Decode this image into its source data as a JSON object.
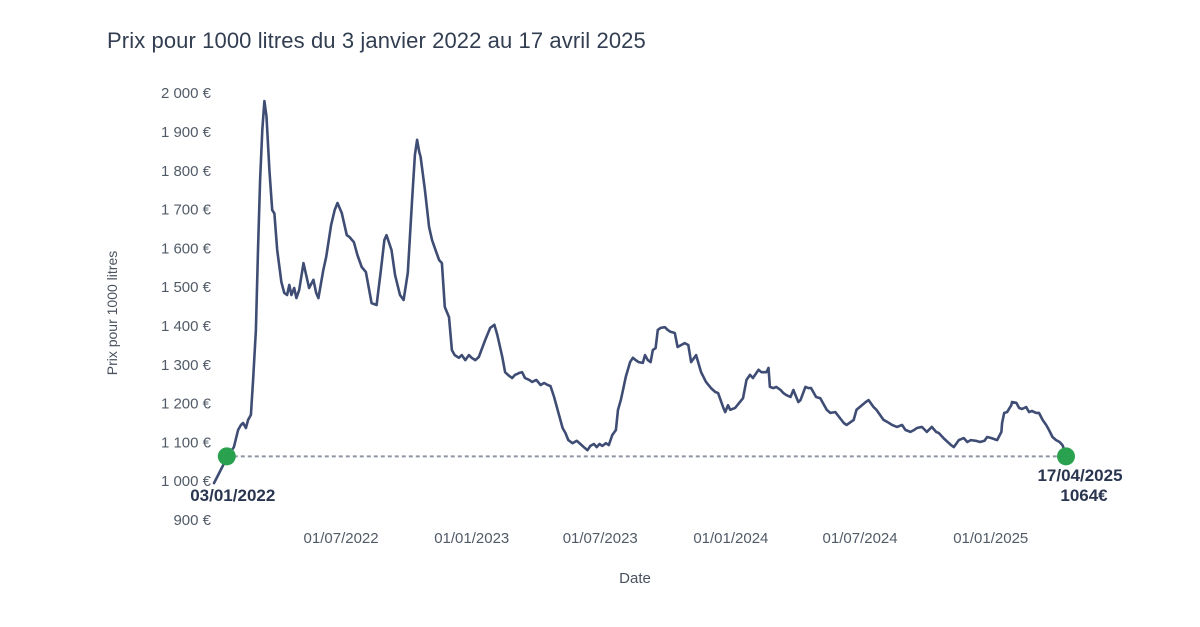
{
  "chart_data": {
    "type": "line",
    "title": "Prix pour 1000 litres du 3 janvier 2022 au 17 avril 2025",
    "xlabel": "Date",
    "ylabel": "Prix pour 1000 litres",
    "x_unit": "days_since_03/01/2022",
    "ylim": [
      900,
      2000
    ],
    "grid": false,
    "legend": "none",
    "y_ticks": [
      {
        "value": 900,
        "label": "900 €"
      },
      {
        "value": 1000,
        "label": "1 000 €"
      },
      {
        "value": 1100,
        "label": "1 100 €"
      },
      {
        "value": 1200,
        "label": "1 200 €"
      },
      {
        "value": 1300,
        "label": "1 300 €"
      },
      {
        "value": 1400,
        "label": "1 400 €"
      },
      {
        "value": 1500,
        "label": "1 500 €"
      },
      {
        "value": 1600,
        "label": "1 600 €"
      },
      {
        "value": 1700,
        "label": "1 700 €"
      },
      {
        "value": 1800,
        "label": "1 800 €"
      },
      {
        "value": 1900,
        "label": "1 900 €"
      },
      {
        "value": 2000,
        "label": "2 000 €"
      }
    ],
    "x_ticks": [
      {
        "day": 179,
        "label": "01/07/2022"
      },
      {
        "day": 363,
        "label": "01/01/2023"
      },
      {
        "day": 544,
        "label": "01/07/2023"
      },
      {
        "day": 728,
        "label": "01/01/2024"
      },
      {
        "day": 910,
        "label": "01/07/2024"
      },
      {
        "day": 1094,
        "label": "01/01/2025"
      }
    ],
    "colors": {
      "line": "#3f4d74",
      "marker": "#2aa14e",
      "dashed_reference": "#8e96a5",
      "title_text": "#323e51",
      "tick_text": "#515b67",
      "axis_title_text": "#49525e",
      "annotation_text": "#2a3650"
    },
    "reference_line": {
      "value": 1064,
      "from_day": 18,
      "to_day": 1200,
      "style": "dashed"
    },
    "markers": [
      {
        "day": 18,
        "value": 1064,
        "label": "03/01/2022",
        "sublabel": ""
      },
      {
        "day": 1200,
        "value": 1064,
        "label": "17/04/2025",
        "sublabel": "1064€"
      }
    ],
    "series": [
      {
        "name": "Prix pour 1000 litres",
        "points": [
          [
            0,
            995
          ],
          [
            7,
            1020
          ],
          [
            14,
            1045
          ],
          [
            21,
            1068
          ],
          [
            28,
            1088
          ],
          [
            34,
            1132
          ],
          [
            38,
            1145
          ],
          [
            41,
            1150
          ],
          [
            45,
            1137
          ],
          [
            48,
            1158
          ],
          [
            52,
            1171
          ],
          [
            55,
            1261
          ],
          [
            59,
            1390
          ],
          [
            62,
            1596
          ],
          [
            65,
            1776
          ],
          [
            68,
            1905
          ],
          [
            71,
            1980
          ],
          [
            74,
            1940
          ],
          [
            78,
            1802
          ],
          [
            82,
            1699
          ],
          [
            85,
            1690
          ],
          [
            89,
            1596
          ],
          [
            95,
            1513
          ],
          [
            99,
            1485
          ],
          [
            103,
            1480
          ],
          [
            106,
            1506
          ],
          [
            109,
            1480
          ],
          [
            113,
            1498
          ],
          [
            116,
            1472
          ],
          [
            120,
            1493
          ],
          [
            126,
            1562
          ],
          [
            130,
            1530
          ],
          [
            134,
            1498
          ],
          [
            140,
            1519
          ],
          [
            144,
            1485
          ],
          [
            147,
            1472
          ],
          [
            154,
            1544
          ],
          [
            158,
            1578
          ],
          [
            165,
            1660
          ],
          [
            170,
            1699
          ],
          [
            174,
            1717
          ],
          [
            180,
            1691
          ],
          [
            187,
            1634
          ],
          [
            191,
            1629
          ],
          [
            197,
            1616
          ],
          [
            202,
            1583
          ],
          [
            208,
            1552
          ],
          [
            214,
            1539
          ],
          [
            222,
            1459
          ],
          [
            229,
            1454
          ],
          [
            235,
            1544
          ],
          [
            240,
            1622
          ],
          [
            243,
            1634
          ],
          [
            250,
            1596
          ],
          [
            255,
            1531
          ],
          [
            262,
            1480
          ],
          [
            267,
            1467
          ],
          [
            273,
            1537
          ],
          [
            279,
            1725
          ],
          [
            283,
            1841
          ],
          [
            286,
            1880
          ],
          [
            289,
            1849
          ],
          [
            291,
            1836
          ],
          [
            297,
            1751
          ],
          [
            303,
            1655
          ],
          [
            307,
            1622
          ],
          [
            313,
            1591
          ],
          [
            317,
            1570
          ],
          [
            321,
            1562
          ],
          [
            325,
            1449
          ],
          [
            331,
            1423
          ],
          [
            335,
            1338
          ],
          [
            339,
            1325
          ],
          [
            345,
            1318
          ],
          [
            349,
            1325
          ],
          [
            354,
            1312
          ],
          [
            359,
            1325
          ],
          [
            363,
            1318
          ],
          [
            368,
            1312
          ],
          [
            373,
            1320
          ],
          [
            382,
            1364
          ],
          [
            389,
            1395
          ],
          [
            395,
            1403
          ],
          [
            399,
            1377
          ],
          [
            406,
            1320
          ],
          [
            410,
            1281
          ],
          [
            416,
            1271
          ],
          [
            420,
            1266
          ],
          [
            424,
            1274
          ],
          [
            430,
            1279
          ],
          [
            434,
            1281
          ],
          [
            438,
            1266
          ],
          [
            444,
            1261
          ],
          [
            448,
            1256
          ],
          [
            454,
            1261
          ],
          [
            460,
            1248
          ],
          [
            465,
            1253
          ],
          [
            470,
            1248
          ],
          [
            474,
            1245
          ],
          [
            479,
            1217
          ],
          [
            484,
            1184
          ],
          [
            491,
            1137
          ],
          [
            495,
            1124
          ],
          [
            499,
            1106
          ],
          [
            505,
            1098
          ],
          [
            511,
            1104
          ],
          [
            516,
            1096
          ],
          [
            522,
            1086
          ],
          [
            526,
            1080
          ],
          [
            530,
            1091
          ],
          [
            535,
            1096
          ],
          [
            539,
            1088
          ],
          [
            543,
            1096
          ],
          [
            547,
            1091
          ],
          [
            552,
            1098
          ],
          [
            556,
            1093
          ],
          [
            561,
            1119
          ],
          [
            566,
            1132
          ],
          [
            569,
            1184
          ],
          [
            573,
            1209
          ],
          [
            576,
            1235
          ],
          [
            580,
            1269
          ],
          [
            586,
            1307
          ],
          [
            590,
            1318
          ],
          [
            594,
            1312
          ],
          [
            598,
            1307
          ],
          [
            604,
            1305
          ],
          [
            607,
            1325
          ],
          [
            611,
            1312
          ],
          [
            615,
            1307
          ],
          [
            618,
            1338
          ],
          [
            622,
            1343
          ],
          [
            625,
            1390
          ],
          [
            629,
            1395
          ],
          [
            635,
            1397
          ],
          [
            639,
            1390
          ],
          [
            643,
            1385
          ],
          [
            649,
            1382
          ],
          [
            653,
            1346
          ],
          [
            658,
            1351
          ],
          [
            663,
            1356
          ],
          [
            668,
            1351
          ],
          [
            672,
            1307
          ],
          [
            679,
            1325
          ],
          [
            686,
            1281
          ],
          [
            693,
            1256
          ],
          [
            700,
            1240
          ],
          [
            706,
            1230
          ],
          [
            710,
            1227
          ],
          [
            717,
            1191
          ],
          [
            720,
            1178
          ],
          [
            724,
            1196
          ],
          [
            727,
            1184
          ],
          [
            734,
            1189
          ],
          [
            743,
            1209
          ],
          [
            745,
            1214
          ],
          [
            750,
            1261
          ],
          [
            755,
            1274
          ],
          [
            759,
            1266
          ],
          [
            767,
            1287
          ],
          [
            771,
            1281
          ],
          [
            778,
            1281
          ],
          [
            781,
            1292
          ],
          [
            783,
            1243
          ],
          [
            788,
            1240
          ],
          [
            792,
            1243
          ],
          [
            798,
            1235
          ],
          [
            802,
            1227
          ],
          [
            806,
            1222
          ],
          [
            812,
            1217
          ],
          [
            816,
            1235
          ],
          [
            823,
            1204
          ],
          [
            826,
            1209
          ],
          [
            833,
            1243
          ],
          [
            837,
            1240
          ],
          [
            841,
            1240
          ],
          [
            848,
            1217
          ],
          [
            854,
            1214
          ],
          [
            863,
            1184
          ],
          [
            868,
            1176
          ],
          [
            875,
            1178
          ],
          [
            887,
            1150
          ],
          [
            891,
            1145
          ],
          [
            901,
            1158
          ],
          [
            905,
            1184
          ],
          [
            918,
            1204
          ],
          [
            922,
            1209
          ],
          [
            929,
            1191
          ],
          [
            933,
            1184
          ],
          [
            943,
            1158
          ],
          [
            948,
            1153
          ],
          [
            955,
            1145
          ],
          [
            962,
            1140
          ],
          [
            969,
            1145
          ],
          [
            974,
            1132
          ],
          [
            981,
            1127
          ],
          [
            986,
            1132
          ],
          [
            990,
            1137
          ],
          [
            997,
            1140
          ],
          [
            1004,
            1127
          ],
          [
            1011,
            1140
          ],
          [
            1017,
            1127
          ],
          [
            1021,
            1124
          ],
          [
            1028,
            1110
          ],
          [
            1038,
            1093
          ],
          [
            1042,
            1088
          ],
          [
            1049,
            1106
          ],
          [
            1056,
            1111
          ],
          [
            1061,
            1101
          ],
          [
            1066,
            1106
          ],
          [
            1073,
            1104
          ],
          [
            1079,
            1101
          ],
          [
            1085,
            1104
          ],
          [
            1089,
            1114
          ],
          [
            1095,
            1111
          ],
          [
            1103,
            1106
          ],
          [
            1109,
            1127
          ],
          [
            1110,
            1150
          ],
          [
            1113,
            1176
          ],
          [
            1117,
            1178
          ],
          [
            1123,
            1196
          ],
          [
            1124,
            1204
          ],
          [
            1130,
            1202
          ],
          [
            1134,
            1189
          ],
          [
            1138,
            1186
          ],
          [
            1144,
            1191
          ],
          [
            1148,
            1178
          ],
          [
            1152,
            1181
          ],
          [
            1158,
            1176
          ],
          [
            1162,
            1176
          ],
          [
            1167,
            1158
          ],
          [
            1172,
            1145
          ],
          [
            1176,
            1132
          ],
          [
            1181,
            1114
          ],
          [
            1186,
            1106
          ],
          [
            1191,
            1101
          ],
          [
            1195,
            1093
          ],
          [
            1198,
            1078
          ],
          [
            1200,
            1064
          ]
        ]
      }
    ]
  }
}
